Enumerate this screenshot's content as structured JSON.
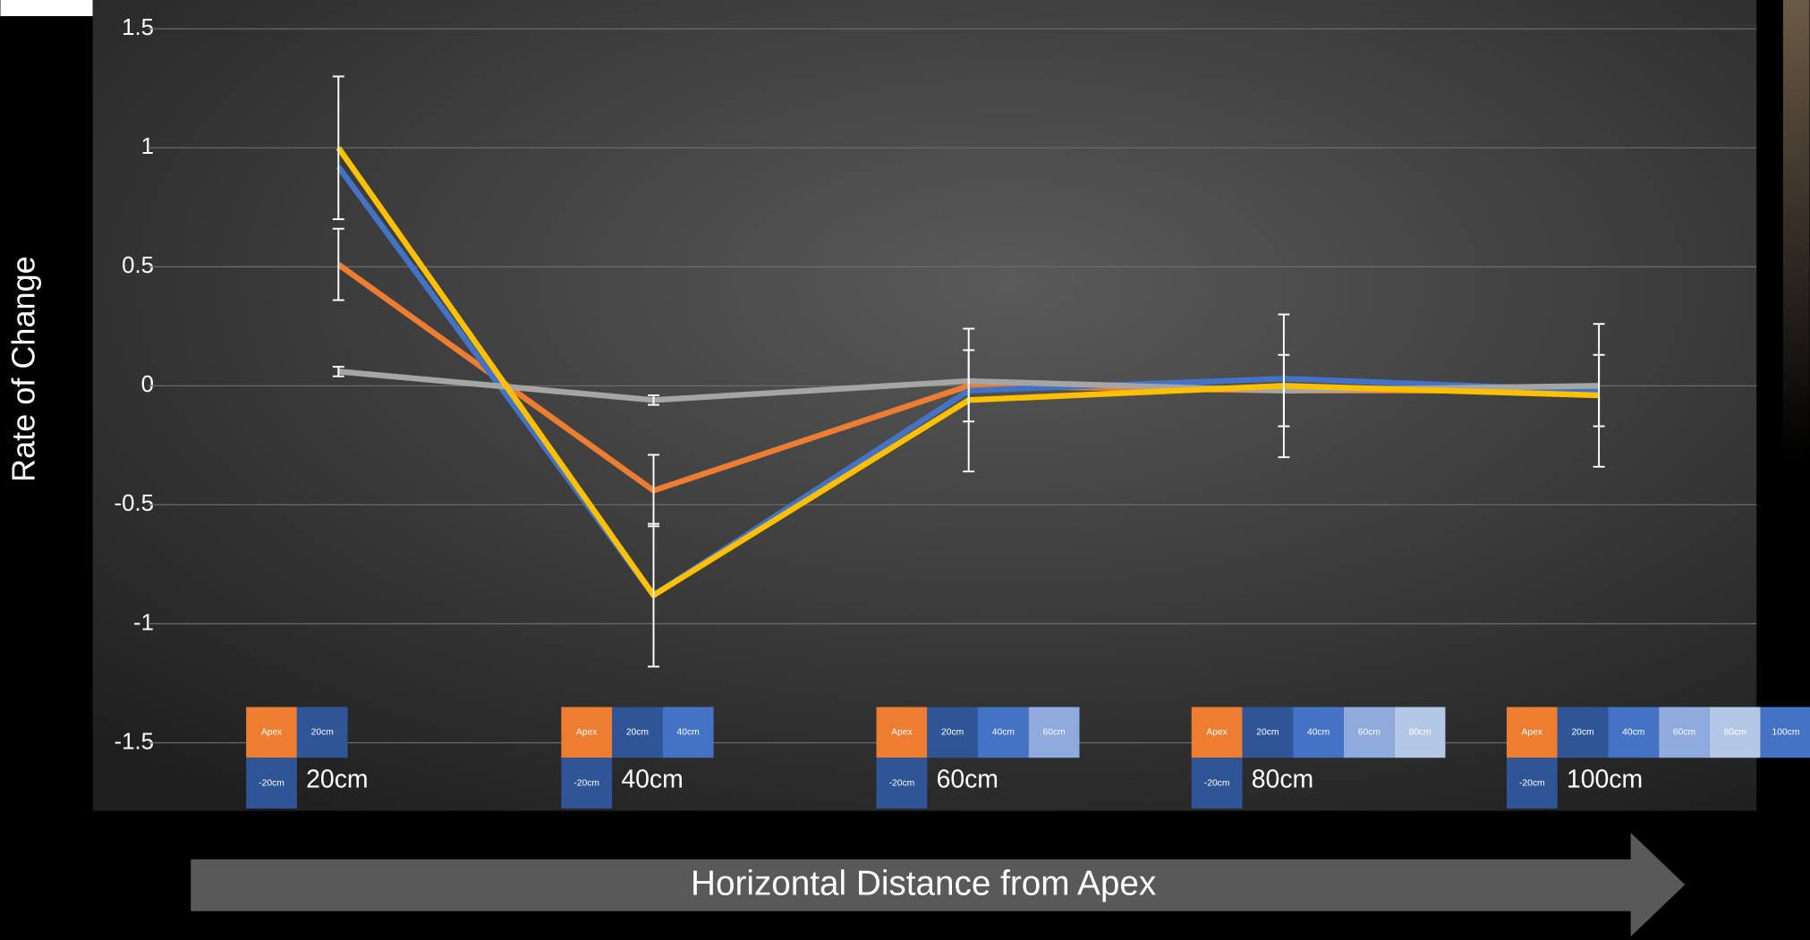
{
  "chart_data": {
    "type": "line",
    "y_label": "Rate of Change",
    "x_label": "Horizontal Distance from Apex",
    "categories": [
      "20cm",
      "40cm",
      "60cm",
      "80cm",
      "100cm"
    ],
    "ylim": [
      -1.5,
      1.5
    ],
    "yticks": [
      -1.5,
      -1,
      -0.5,
      0,
      0.5,
      1,
      1.5
    ],
    "grid": true,
    "series": [
      {
        "color": "#ed7d31",
        "values": [
          0.51,
          -0.44,
          0.0,
          -0.02,
          -0.02
        ],
        "errors": [
          0.15,
          0.15,
          0.15,
          0.15,
          0.15
        ]
      },
      {
        "color": "#4472c4",
        "values": [
          0.92,
          -0.88,
          -0.02,
          0.03,
          -0.02
        ]
      },
      {
        "color": "#a5a5a5",
        "values": [
          0.06,
          -0.06,
          0.02,
          -0.02,
          0.0
        ],
        "errors": [
          0.02,
          0.02,
          null,
          null,
          null
        ]
      },
      {
        "color": "#ffc000",
        "values": [
          1.0,
          -0.88,
          -0.06,
          0.0,
          -0.04
        ],
        "errors": [
          0.3,
          0.3,
          0.3,
          0.3,
          0.3
        ]
      }
    ],
    "diagram_colors": [
      "#ed7d31",
      "#2f5597",
      "#4472c4",
      "#8faadc",
      "#b4c7e7",
      "#4472c4"
    ],
    "diagram_bottom_color": "#2f5597",
    "category_diagrams": [
      {
        "top": [
          "Apex",
          "20cm"
        ],
        "bottom": "-20cm"
      },
      {
        "top": [
          "Apex",
          "20cm",
          "40cm"
        ],
        "bottom": "-20cm"
      },
      {
        "top": [
          "Apex",
          "20cm",
          "40cm",
          "60cm"
        ],
        "bottom": "-20cm"
      },
      {
        "top": [
          "Apex",
          "20cm",
          "40cm",
          "60cm",
          "80cm"
        ],
        "bottom": "-20cm"
      },
      {
        "top": [
          "Apex",
          "20cm",
          "40cm",
          "60cm",
          "80cm",
          "100cm"
        ],
        "bottom": "-20cm"
      }
    ]
  }
}
